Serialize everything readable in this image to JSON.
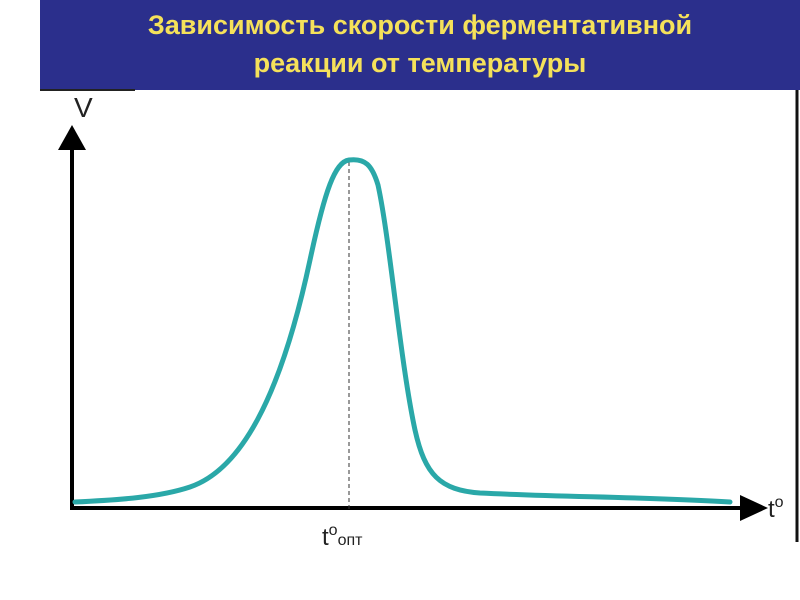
{
  "header": {
    "title_lines": [
      "Зависимость скорости ферментативной",
      "реакции от температуры"
    ]
  },
  "diagram": {
    "y_axis_label": "V",
    "x_axis_label": {
      "base": "t",
      "sup": "o"
    },
    "optimum_label": {
      "base": "t",
      "sup": "o",
      "sub": "опт"
    }
  }
}
